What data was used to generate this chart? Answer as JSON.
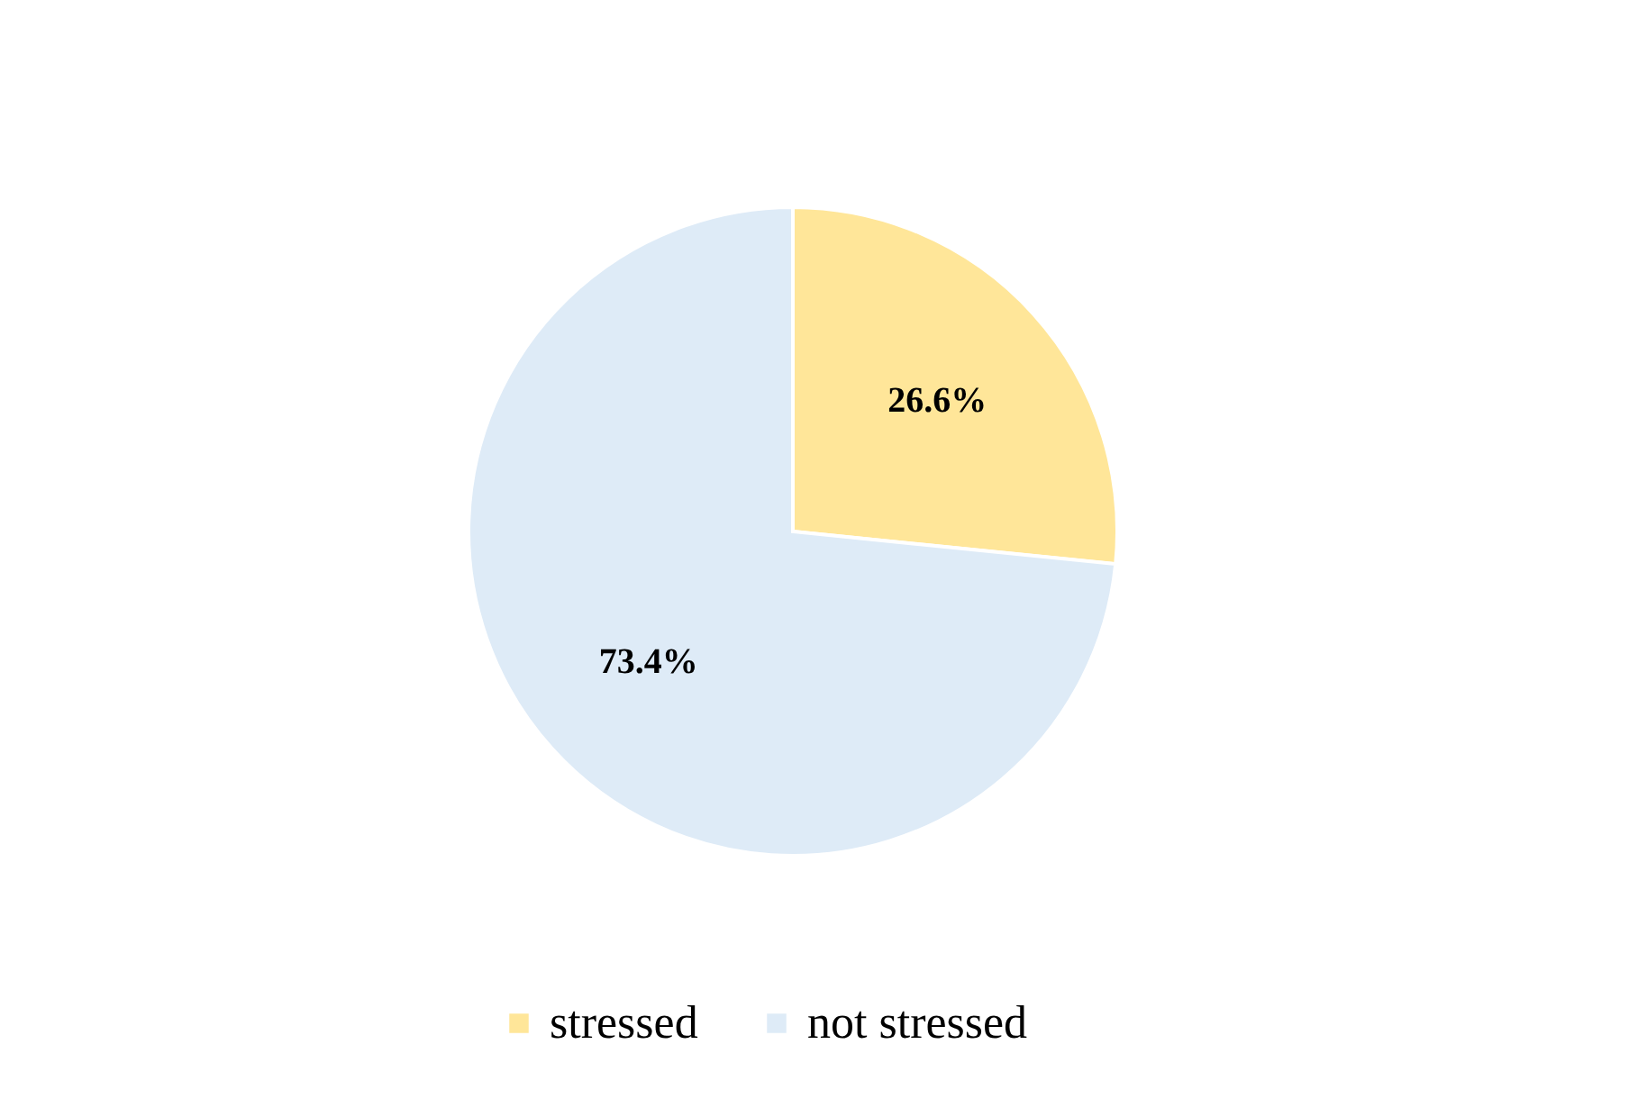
{
  "chart_data": {
    "type": "pie",
    "categories": [
      "stressed",
      "not stressed"
    ],
    "values": [
      26.6,
      73.4
    ],
    "colors": [
      "#ffe699",
      "#deebf7"
    ],
    "value_labels": [
      "26.6%",
      "73.4%"
    ],
    "legend": "bottom"
  }
}
